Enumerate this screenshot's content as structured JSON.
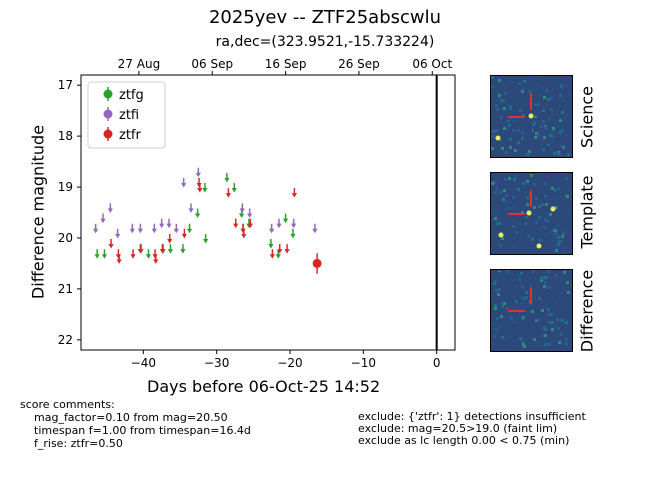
{
  "header": {
    "title": "2025yev -- ZTF25abscwlu",
    "subtitle": "ra,dec=(323.9521,-15.733224)"
  },
  "chart_data": {
    "type": "scatter",
    "xlabel": "Days before 06-Oct-25 14:52",
    "ylabel": "Difference magnitude",
    "xlim": [
      -48.5,
      2.5
    ],
    "ylim": [
      22.2,
      16.8
    ],
    "y_inverted": true,
    "xticks": [
      -40,
      -30,
      -20,
      -10,
      0
    ],
    "xtick_labels": [
      "−40",
      "−30",
      "−20",
      "−10",
      "0"
    ],
    "yticks": [
      17,
      18,
      19,
      20,
      21,
      22
    ],
    "ytick_labels": [
      "17",
      "18",
      "19",
      "20",
      "21",
      "22"
    ],
    "top_ticks": [
      {
        "x": -40.6,
        "label": "27 Aug"
      },
      {
        "x": -30.6,
        "label": "06 Sep"
      },
      {
        "x": -20.6,
        "label": "16 Sep"
      },
      {
        "x": -10.6,
        "label": "26 Sep"
      },
      {
        "x": -0.6,
        "label": "06 Oct"
      }
    ],
    "vline_x": 0,
    "legend_position": "upper-left",
    "series": [
      {
        "name": "ztfg",
        "color": "#2ca02c",
        "detections": [],
        "limits": [
          {
            "x": -46.3,
            "y": 20.3
          },
          {
            "x": -45.3,
            "y": 20.3
          },
          {
            "x": -40.3,
            "y": 20.2
          },
          {
            "x": -39.3,
            "y": 20.3
          },
          {
            "x": -37.3,
            "y": 20.2
          },
          {
            "x": -36.3,
            "y": 20.2
          },
          {
            "x": -34.6,
            "y": 20.2
          },
          {
            "x": -33.7,
            "y": 19.8
          },
          {
            "x": -32.6,
            "y": 19.5
          },
          {
            "x": -31.6,
            "y": 19.0
          },
          {
            "x": -31.5,
            "y": 20.0
          },
          {
            "x": -28.6,
            "y": 18.8
          },
          {
            "x": -27.6,
            "y": 19.0
          },
          {
            "x": -26.6,
            "y": 19.5
          },
          {
            "x": -26.4,
            "y": 19.8
          },
          {
            "x": -25.6,
            "y": 19.7
          },
          {
            "x": -22.6,
            "y": 20.1
          },
          {
            "x": -21.6,
            "y": 20.3
          },
          {
            "x": -20.6,
            "y": 19.6
          },
          {
            "x": -19.6,
            "y": 19.9
          }
        ]
      },
      {
        "name": "ztfi",
        "color": "#9467bd",
        "detections": [],
        "limits": [
          {
            "x": -46.5,
            "y": 19.8
          },
          {
            "x": -45.5,
            "y": 19.6
          },
          {
            "x": -44.5,
            "y": 19.4
          },
          {
            "x": -43.5,
            "y": 19.9
          },
          {
            "x": -41.5,
            "y": 19.8
          },
          {
            "x": -40.4,
            "y": 19.8
          },
          {
            "x": -38.5,
            "y": 19.8
          },
          {
            "x": -37.5,
            "y": 19.7
          },
          {
            "x": -36.5,
            "y": 19.7
          },
          {
            "x": -35.5,
            "y": 19.8
          },
          {
            "x": -34.5,
            "y": 18.9
          },
          {
            "x": -33.5,
            "y": 19.4
          },
          {
            "x": -32.5,
            "y": 18.7
          },
          {
            "x": -26.5,
            "y": 19.4
          },
          {
            "x": -25.5,
            "y": 19.5
          },
          {
            "x": -22.5,
            "y": 19.8
          },
          {
            "x": -21.5,
            "y": 19.7
          },
          {
            "x": -19.5,
            "y": 19.7
          },
          {
            "x": -16.6,
            "y": 19.8
          }
        ]
      },
      {
        "name": "ztfr",
        "color": "#d62728",
        "detections": [
          {
            "x": -16.3,
            "y": 20.5,
            "err": 0.2
          }
        ],
        "limits": [
          {
            "x": -44.4,
            "y": 20.1
          },
          {
            "x": -43.4,
            "y": 20.3
          },
          {
            "x": -43.3,
            "y": 20.4
          },
          {
            "x": -41.4,
            "y": 20.3
          },
          {
            "x": -40.4,
            "y": 20.2
          },
          {
            "x": -38.4,
            "y": 20.3
          },
          {
            "x": -38.3,
            "y": 20.4
          },
          {
            "x": -37.4,
            "y": 20.2
          },
          {
            "x": -36.4,
            "y": 20.0
          },
          {
            "x": -34.4,
            "y": 19.9
          },
          {
            "x": -32.4,
            "y": 18.9
          },
          {
            "x": -32.3,
            "y": 19.0
          },
          {
            "x": -28.4,
            "y": 19.1
          },
          {
            "x": -27.4,
            "y": 19.7
          },
          {
            "x": -26.4,
            "y": 19.8
          },
          {
            "x": -26.3,
            "y": 19.9
          },
          {
            "x": -25.4,
            "y": 19.7
          },
          {
            "x": -22.4,
            "y": 20.3
          },
          {
            "x": -21.4,
            "y": 20.2
          },
          {
            "x": -20.4,
            "y": 20.2
          },
          {
            "x": -19.4,
            "y": 19.1
          }
        ]
      }
    ]
  },
  "cutouts": [
    {
      "label": "Science"
    },
    {
      "label": "Template"
    },
    {
      "label": "Difference"
    }
  ],
  "notes": {
    "score_header": "score comments:",
    "score_lines": [
      "mag_factor=0.10 from mag=20.50",
      "timespan f=1.00 from timespan=16.4d",
      "f_rise: ztfr=0.50"
    ],
    "exclude_lines": [
      "exclude: {'ztfr': 1} detections insufficient",
      "exclude: mag=20.5>19.0 (faint lim)",
      "exclude as lc length 0.00 < 0.75 (min)"
    ]
  }
}
